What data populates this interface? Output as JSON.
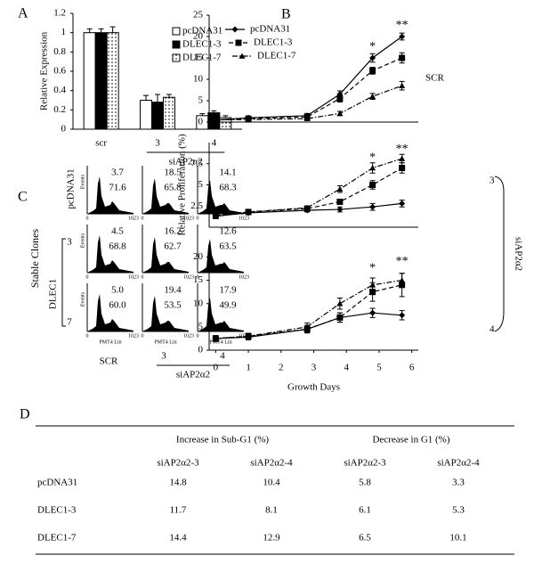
{
  "chart_data": [
    {
      "type": "bar",
      "label": "A",
      "ylabel": "Relative Expression",
      "categories": [
        "scr",
        "3",
        "4"
      ],
      "group_label": "siAP2α2",
      "ylim": [
        0,
        1.2
      ],
      "yticks": [
        0,
        0.2,
        0.4,
        0.6,
        0.8,
        1,
        1.2
      ],
      "legend": "upper right",
      "series": [
        {
          "name": "pcDNA31",
          "color": "#ffffff",
          "pattern": "none",
          "values": [
            1,
            0.3,
            0.14
          ],
          "errors": [
            0.04,
            0.05,
            0.02
          ]
        },
        {
          "name": "DLEC1-3",
          "color": "#000000",
          "pattern": "none",
          "values": [
            1,
            0.28,
            0.17
          ],
          "errors": [
            0.04,
            0.08,
            0.02
          ]
        },
        {
          "name": "DLEC1-7",
          "color": "#ffffff",
          "pattern": "dots",
          "values": [
            1,
            0.33,
            0.12
          ],
          "errors": [
            0.06,
            0.03,
            0.02
          ]
        }
      ]
    },
    {
      "type": "line",
      "label": "B",
      "side_label": "SCR",
      "legend": "upper left",
      "x": [
        0,
        1,
        2.8,
        3.8,
        4.8,
        5.7
      ],
      "xlim": [
        -0.2,
        6.2
      ],
      "ylim": [
        0,
        25
      ],
      "yticks": [
        0,
        5,
        10,
        15,
        20,
        25
      ],
      "annotations": [
        {
          "text": "*",
          "x": 4.8,
          "y": 17.5
        },
        {
          "text": "**",
          "x": 5.7,
          "y": 22.5
        }
      ],
      "series": [
        {
          "name": "pcDNA31",
          "color": "#000000",
          "marker": "diamond",
          "dash": "solid",
          "values": [
            0.5,
            1,
            1.5,
            6.5,
            15,
            20
          ],
          "errors": [
            0.3,
            0.4,
            0.5,
            0.8,
            1,
            0.8
          ]
        },
        {
          "name": "DLEC1-3",
          "color": "#000000",
          "marker": "square",
          "dash": "dashed",
          "values": [
            0.5,
            0.8,
            1.2,
            5.5,
            12,
            15
          ],
          "errors": [
            0.3,
            0.4,
            0.5,
            0.8,
            0.8,
            1.2
          ]
        },
        {
          "name": "DLEC1-7",
          "color": "#000000",
          "marker": "triangle",
          "dash": "dashdot",
          "values": [
            0.5,
            0.6,
            0.8,
            2,
            6,
            8.5
          ],
          "errors": [
            0.3,
            0.3,
            0.4,
            0.5,
            0.7,
            1
          ]
        }
      ]
    },
    {
      "type": "line",
      "side_label": "3",
      "ylabel": "Relative Proliferation (%)",
      "x": [
        0,
        1,
        2.8,
        3.8,
        4.8,
        5.7
      ],
      "xlim": [
        -0.2,
        6.2
      ],
      "ylim": [
        0,
        10
      ],
      "yticks": [
        2.5,
        5,
        7.5
      ],
      "annotations": [
        {
          "text": "*",
          "x": 4.8,
          "y": 8.2
        },
        {
          "text": "**",
          "x": 5.7,
          "y": 9.2
        }
      ],
      "series": [
        {
          "color": "#000000",
          "marker": "diamond",
          "dash": "solid",
          "values": [
            1.3,
            1.7,
            2,
            2.1,
            2.4,
            2.8
          ],
          "errors": [
            0.3,
            0.2,
            0.2,
            0.3,
            0.4,
            0.4
          ]
        },
        {
          "color": "#000000",
          "marker": "square",
          "dash": "dashed",
          "values": [
            1.4,
            1.8,
            2.2,
            3,
            5,
            7
          ],
          "errors": [
            0.3,
            0.2,
            0.2,
            0.3,
            0.5,
            0.6
          ]
        },
        {
          "color": "#000000",
          "marker": "triangle",
          "dash": "dashdot",
          "values": [
            1.3,
            1.8,
            2.3,
            4.5,
            7,
            8.1
          ],
          "errors": [
            0.3,
            0.2,
            0.2,
            0.4,
            0.6,
            0.5
          ]
        }
      ]
    },
    {
      "type": "line",
      "side_label": "4",
      "xlabel": "Growth Days",
      "x": [
        0,
        1,
        2.8,
        3.8,
        4.8,
        5.7
      ],
      "xlim": [
        -0.2,
        6.2
      ],
      "xticks": [
        0,
        1,
        2,
        3,
        4,
        5,
        6
      ],
      "ylim": [
        0,
        22
      ],
      "yticks": [
        0,
        5,
        10,
        15,
        20
      ],
      "annotations": [
        {
          "text": "*",
          "x": 4.8,
          "y": 17.5
        },
        {
          "text": "**",
          "x": 5.7,
          "y": 19
        }
      ],
      "series": [
        {
          "color": "#000000",
          "marker": "diamond",
          "dash": "solid",
          "values": [
            2.5,
            2.8,
            4.5,
            7,
            8,
            7.5
          ],
          "errors": [
            0.6,
            0.6,
            0.8,
            1,
            1,
            1
          ]
        },
        {
          "color": "#000000",
          "marker": "square",
          "dash": "dashed",
          "values": [
            2.5,
            3,
            4.5,
            7,
            12.5,
            14
          ],
          "errors": [
            0.6,
            0.6,
            0.8,
            1,
            2,
            2.5
          ]
        },
        {
          "color": "#000000",
          "marker": "triangle",
          "dash": "dashdot",
          "values": [
            2.5,
            3,
            5,
            10,
            14,
            15
          ],
          "errors": [
            0.6,
            0.6,
            0.8,
            1.2,
            1.5,
            1.5
          ]
        }
      ]
    }
  ],
  "proliferation_group": "siAP2α2",
  "flow": {
    "label": "C",
    "side_title": "Stable Clones",
    "row_labels": [
      "pcDNA31",
      "3",
      "7"
    ],
    "row_group": "DLEC1",
    "col_labels": [
      "SCR",
      "3",
      "4"
    ],
    "col_group": "siAP2α2",
    "y_label": "Events",
    "x_label": "PMT4 Lin",
    "x_ticks": [
      "0",
      "1023"
    ],
    "cells": [
      [
        [
          "3.7",
          "71.6"
        ],
        [
          "18.5",
          "65.8"
        ],
        [
          "14.1",
          "68.3"
        ]
      ],
      [
        [
          "4.5",
          "68.8"
        ],
        [
          "16.2",
          "62.7"
        ],
        [
          "12.6",
          "63.5"
        ]
      ],
      [
        [
          "5.0",
          "60.0"
        ],
        [
          "19.4",
          "53.5"
        ],
        [
          "17.9",
          "49.9"
        ]
      ]
    ]
  },
  "table": {
    "label": "D",
    "groups": [
      "Increase in Sub-G1 (%)",
      "Decrease in G1 (%)"
    ],
    "columns": [
      "siAP2α2-3",
      "siAP2α2-4",
      "siAP2α2-3",
      "siAP2α2-4"
    ],
    "rows": [
      [
        "pcDNA31",
        "14.8",
        "10.4",
        "5.8",
        "3.3"
      ],
      [
        "DLEC1-3",
        "11.7",
        "8.1",
        "6.1",
        "5.3"
      ],
      [
        "DLEC1-7",
        "14.4",
        "12.9",
        "6.5",
        "10.1"
      ]
    ]
  }
}
